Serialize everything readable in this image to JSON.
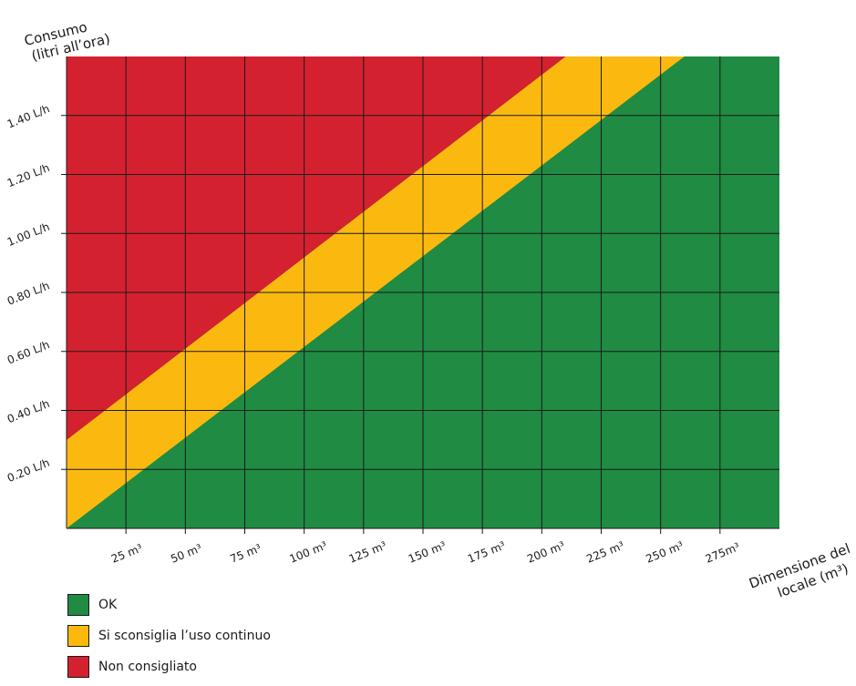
{
  "chart_data": {
    "type": "area",
    "x_ticks": [
      25,
      50,
      75,
      100,
      125,
      150,
      175,
      200,
      225,
      250,
      275
    ],
    "x_tick_labels": [
      "25 m³",
      "50 m³",
      "75 m³",
      "100 m³",
      "125 m³",
      "150 m³",
      "175 m³",
      "200 m³",
      "225 m³",
      "250 m³",
      "275m³"
    ],
    "y_ticks": [
      0.2,
      0.4,
      0.6,
      0.8,
      1.0,
      1.2,
      1.4
    ],
    "y_tick_labels": [
      "0.20 L/h",
      "0.40 L/h",
      "0.60 L/h",
      "0.80 L/h",
      "1.00 L/h",
      "1.20 L/h",
      "1.40 L/h"
    ],
    "xlim": [
      0,
      300
    ],
    "ylim": [
      0,
      1.6
    ],
    "xlabel": [
      "Dimensione del",
      "locale (m³)"
    ],
    "ylabel": [
      "Consumo",
      "(litri all’ora)"
    ],
    "grid": true,
    "boundaries": [
      {
        "name": "upper",
        "points": [
          [
            0,
            0.3
          ],
          [
            210,
            1.6
          ]
        ]
      },
      {
        "name": "lower",
        "points": [
          [
            0,
            0.0
          ],
          [
            260,
            1.6
          ]
        ]
      }
    ],
    "regions": [
      {
        "label": "OK",
        "color": "#1f8b43"
      },
      {
        "label": "Si sconsiglia l’uso continuo",
        "color": "#fbb910"
      },
      {
        "label": "Non consigliato",
        "color": "#d4212f"
      }
    ]
  }
}
